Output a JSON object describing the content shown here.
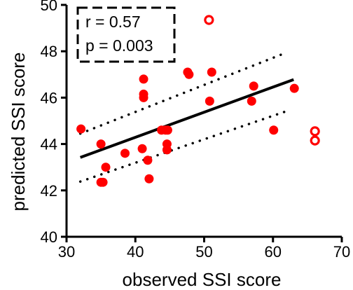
{
  "chart_data": {
    "type": "scatter",
    "xlabel": "observed SSI score",
    "ylabel": "predicted SSI score",
    "xlim": [
      30,
      70
    ],
    "ylim": [
      40,
      50
    ],
    "xticks": [
      "30",
      "40",
      "50",
      "60",
      "70"
    ],
    "yticks": [
      "40",
      "42",
      "44",
      "46",
      "48",
      "50"
    ],
    "annotation": {
      "r_text": "r = 0.57",
      "p_text": "p = 0.003",
      "style": "dashed box",
      "placement": "top-left"
    },
    "colors": {
      "points": "#ff0000",
      "fit": "#000000"
    },
    "series": [
      {
        "marker": "filled circle",
        "points": [
          {
            "x": 32.1,
            "y": 44.65
          },
          {
            "x": 35.0,
            "y": 44.0
          },
          {
            "x": 35.0,
            "y": 42.35
          },
          {
            "x": 35.3,
            "y": 42.35
          },
          {
            "x": 35.7,
            "y": 43.0
          },
          {
            "x": 38.5,
            "y": 43.6
          },
          {
            "x": 41.0,
            "y": 43.8
          },
          {
            "x": 41.2,
            "y": 46.8
          },
          {
            "x": 41.2,
            "y": 46.15
          },
          {
            "x": 41.2,
            "y": 46.0
          },
          {
            "x": 41.8,
            "y": 43.3
          },
          {
            "x": 42.0,
            "y": 42.5
          },
          {
            "x": 43.8,
            "y": 44.6
          },
          {
            "x": 44.4,
            "y": 44.6
          },
          {
            "x": 44.7,
            "y": 44.6
          },
          {
            "x": 44.6,
            "y": 44.0
          },
          {
            "x": 44.6,
            "y": 43.75
          },
          {
            "x": 47.6,
            "y": 47.1
          },
          {
            "x": 47.8,
            "y": 47.0
          },
          {
            "x": 50.8,
            "y": 45.85
          },
          {
            "x": 51.1,
            "y": 47.1
          },
          {
            "x": 56.9,
            "y": 45.85
          },
          {
            "x": 57.2,
            "y": 46.5
          },
          {
            "x": 60.1,
            "y": 44.6
          },
          {
            "x": 63.1,
            "y": 46.4
          }
        ]
      },
      {
        "marker": "open circle",
        "points": [
          {
            "x": 50.7,
            "y": 49.35
          },
          {
            "x": 66.1,
            "y": 44.55
          },
          {
            "x": 66.1,
            "y": 44.15
          }
        ]
      }
    ],
    "fit_line": {
      "x": [
        32,
        63
      ],
      "y": [
        43.42,
        46.78
      ]
    },
    "ci_upper": {
      "x": [
        32,
        62
      ],
      "y": [
        44.45,
        47.95
      ]
    },
    "ci_lower": {
      "x": [
        32,
        62
      ],
      "y": [
        42.38,
        45.42
      ]
    }
  }
}
